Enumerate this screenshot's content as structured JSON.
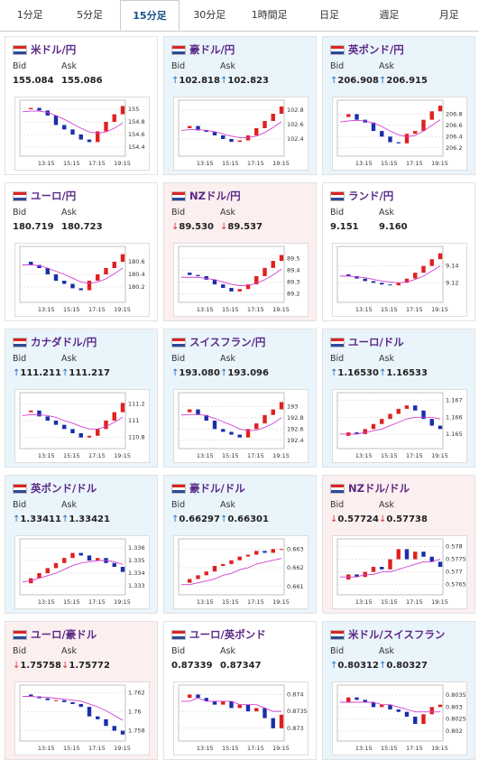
{
  "tabs": [
    "1分足",
    "5分足",
    "15分足",
    "30分足",
    "1時間足",
    "日足",
    "週足",
    "月足"
  ],
  "active_tab": 2,
  "bid_label": "Bid",
  "ask_label": "Ask",
  "chart_xticks": [
    "13:15",
    "15:15",
    "17:15",
    "19:15"
  ],
  "cards": [
    {
      "name": "米ドル/円",
      "trend": null,
      "arrow": null,
      "bid": "155.084",
      "ask": "155.086",
      "chart": {
        "ylim": [
          154.3,
          155.1
        ],
        "yticks": [
          154.4,
          154.6,
          154.8,
          155
        ],
        "close": [
          155.0,
          155.02,
          154.98,
          154.9,
          154.75,
          154.68,
          154.6,
          154.52,
          154.48,
          154.65,
          154.8,
          154.92,
          155.05
        ],
        "ma": [
          154.96,
          154.97,
          154.97,
          154.95,
          154.9,
          154.84,
          154.77,
          154.7,
          154.64,
          154.62,
          154.64,
          154.7,
          154.78
        ]
      }
    },
    {
      "name": "豪ドル/円",
      "trend": "up",
      "arrow": "↑",
      "bid": "102.818",
      "ask": "102.823",
      "chart": {
        "ylim": [
          102.2,
          102.9
        ],
        "yticks": [
          102.4,
          102.6,
          102.8
        ],
        "close": [
          102.55,
          102.58,
          102.52,
          102.5,
          102.45,
          102.4,
          102.36,
          102.38,
          102.45,
          102.55,
          102.65,
          102.75,
          102.85
        ],
        "ma": [
          102.52,
          102.53,
          102.53,
          102.52,
          102.5,
          102.47,
          102.44,
          102.42,
          102.42,
          102.44,
          102.49,
          102.56,
          102.64
        ]
      }
    },
    {
      "name": "英ポンド/円",
      "trend": "up",
      "arrow": "↑",
      "bid": "206.908",
      "ask": "206.915",
      "chart": {
        "ylim": [
          206.1,
          207.0
        ],
        "yticks": [
          206.2,
          206.4,
          206.6,
          206.8
        ],
        "close": [
          206.75,
          206.8,
          206.7,
          206.65,
          206.5,
          206.4,
          206.3,
          206.28,
          206.45,
          206.5,
          206.7,
          206.85,
          206.95
        ],
        "ma": [
          206.66,
          206.68,
          206.69,
          206.68,
          206.64,
          206.58,
          206.5,
          206.43,
          206.4,
          206.42,
          206.5,
          206.6,
          206.7
        ]
      }
    },
    {
      "name": "ユーロ/円",
      "trend": null,
      "arrow": null,
      "bid": "180.719",
      "ask": "180.723",
      "chart": {
        "ylim": [
          180.0,
          180.8
        ],
        "yticks": [
          180.2,
          180.4,
          180.6
        ],
        "close": [
          180.6,
          180.55,
          180.5,
          180.4,
          180.3,
          180.25,
          180.18,
          180.15,
          180.3,
          180.4,
          180.5,
          180.6,
          180.72
        ],
        "ma": [
          180.55,
          180.55,
          180.54,
          180.5,
          180.45,
          180.4,
          180.34,
          180.28,
          180.26,
          180.28,
          180.33,
          180.41,
          180.5
        ]
      }
    },
    {
      "name": "NZドル/円",
      "trend": "down",
      "arrow": "↓",
      "bid": "89.530",
      "ask": "89.537",
      "chart": {
        "ylim": [
          89.15,
          89.58
        ],
        "yticks": [
          89.2,
          89.3,
          89.4,
          89.5
        ],
        "close": [
          89.38,
          89.36,
          89.35,
          89.32,
          89.28,
          89.25,
          89.22,
          89.24,
          89.28,
          89.35,
          89.42,
          89.48,
          89.53
        ],
        "ma": [
          89.34,
          89.34,
          89.34,
          89.33,
          89.32,
          89.3,
          89.28,
          89.27,
          89.27,
          89.29,
          89.32,
          89.36,
          89.41
        ]
      }
    },
    {
      "name": "ランド/円",
      "trend": null,
      "arrow": null,
      "bid": "9.151",
      "ask": "9.160",
      "chart": {
        "ylim": [
          9.1,
          9.16
        ],
        "yticks": [
          9.12,
          9.14
        ],
        "close": [
          9.13,
          9.128,
          9.125,
          9.122,
          9.12,
          9.118,
          9.117,
          9.12,
          9.125,
          9.132,
          9.14,
          9.148,
          9.155
        ],
        "ma": [
          9.128,
          9.128,
          9.127,
          9.126,
          9.124,
          9.122,
          9.121,
          9.12,
          9.121,
          9.124,
          9.128,
          9.134,
          9.14
        ]
      }
    },
    {
      "name": "カナダドル/円",
      "trend": "up",
      "arrow": "↑",
      "bid": "111.211",
      "ask": "111.217",
      "chart": {
        "ylim": [
          110.7,
          111.3
        ],
        "yticks": [
          110.8,
          111,
          111.2
        ],
        "close": [
          111.1,
          111.12,
          111.05,
          111.0,
          110.95,
          110.9,
          110.85,
          110.8,
          110.82,
          110.9,
          111.0,
          111.1,
          111.21
        ],
        "ma": [
          111.06,
          111.07,
          111.07,
          111.06,
          111.04,
          111.0,
          110.97,
          110.93,
          110.9,
          110.9,
          110.93,
          110.98,
          111.04
        ]
      }
    },
    {
      "name": "スイスフラン/円",
      "trend": "up",
      "arrow": "↑",
      "bid": "193.080",
      "ask": "193.096",
      "chart": {
        "ylim": [
          192.3,
          193.2
        ],
        "yticks": [
          192.4,
          192.6,
          192.8,
          193
        ],
        "close": [
          192.9,
          192.95,
          192.85,
          192.75,
          192.6,
          192.55,
          192.5,
          192.45,
          192.6,
          192.7,
          192.85,
          192.95,
          193.08
        ],
        "ma": [
          192.85,
          192.86,
          192.86,
          192.84,
          192.79,
          192.73,
          192.67,
          192.6,
          192.57,
          192.58,
          192.63,
          192.7,
          192.8
        ]
      }
    },
    {
      "name": "ユーロ/ドル",
      "trend": "up",
      "arrow": "↑",
      "bid": "1.16530",
      "ask": "1.16533",
      "chart": {
        "ylim": [
          1.1643,
          1.1673
        ],
        "yticks": [
          1.165,
          1.166,
          1.167
        ],
        "close": [
          1.1649,
          1.1651,
          1.165,
          1.1653,
          1.1656,
          1.1659,
          1.1662,
          1.1665,
          1.1667,
          1.1664,
          1.1659,
          1.1655,
          1.1653
        ],
        "ma": [
          1.165,
          1.165,
          1.165,
          1.1651,
          1.1652,
          1.1653,
          1.1655,
          1.1657,
          1.1659,
          1.166,
          1.166,
          1.166,
          1.1659
        ]
      }
    },
    {
      "name": "英ポンド/ドル",
      "trend": "up",
      "arrow": "↑",
      "bid": "1.33411",
      "ask": "1.33421",
      "chart": {
        "ylim": [
          1.3325,
          1.3365
        ],
        "yticks": [
          1.333,
          1.334,
          1.335,
          1.336
        ],
        "close": [
          1.3332,
          1.3336,
          1.334,
          1.3344,
          1.3348,
          1.3352,
          1.3356,
          1.3354,
          1.335,
          1.3352,
          1.3348,
          1.3345,
          1.3341
        ],
        "ma": [
          1.3333,
          1.3334,
          1.3336,
          1.3338,
          1.334,
          1.3343,
          1.3346,
          1.3348,
          1.3349,
          1.335,
          1.335,
          1.3349,
          1.3347
        ]
      }
    },
    {
      "name": "豪ドル/ドル",
      "trend": "up",
      "arrow": "↑",
      "bid": "0.66297",
      "ask": "0.66301",
      "chart": {
        "ylim": [
          0.6607,
          0.6634
        ],
        "yticks": [
          0.661,
          0.662,
          0.663
        ],
        "close": [
          0.6612,
          0.6614,
          0.6616,
          0.6618,
          0.6621,
          0.6622,
          0.6624,
          0.6626,
          0.6627,
          0.6629,
          0.6628,
          0.663,
          0.663
        ],
        "ma": [
          0.6611,
          0.6611,
          0.6612,
          0.6613,
          0.6614,
          0.6616,
          0.6617,
          0.6619,
          0.662,
          0.6622,
          0.6623,
          0.6624,
          0.6625
        ]
      }
    },
    {
      "name": "NZドル/ドル",
      "trend": "down",
      "arrow": "↓",
      "bid": "0.57724",
      "ask": "0.57738",
      "chart": {
        "ylim": [
          0.5762,
          0.5782
        ],
        "yticks": [
          0.5765,
          0.577,
          0.5775,
          0.578
        ],
        "close": [
          0.5767,
          0.5769,
          0.5768,
          0.577,
          0.5772,
          0.5771,
          0.5775,
          0.5779,
          0.5775,
          0.5778,
          0.5776,
          0.5774,
          0.5772
        ],
        "ma": [
          0.5768,
          0.5768,
          0.5768,
          0.5769,
          0.5769,
          0.577,
          0.577,
          0.5771,
          0.5772,
          0.5773,
          0.5774,
          0.5774,
          0.5775
        ]
      }
    },
    {
      "name": "ユーロ/豪ドル",
      "trend": "down",
      "arrow": "↓",
      "bid": "1.75758",
      "ask": "1.75772",
      "chart": {
        "ylim": [
          1.7572,
          1.7625
        ],
        "yticks": [
          1.758,
          1.76,
          1.762
        ],
        "close": [
          1.7618,
          1.7616,
          1.7614,
          1.7612,
          1.7612,
          1.761,
          1.7608,
          1.7605,
          1.7595,
          1.7592,
          1.7585,
          1.758,
          1.7576
        ],
        "ma": [
          1.7616,
          1.7616,
          1.7615,
          1.7615,
          1.7614,
          1.7613,
          1.7612,
          1.7611,
          1.7608,
          1.7605,
          1.7601,
          1.7596,
          1.7591
        ]
      }
    },
    {
      "name": "ユーロ/英ポンド",
      "trend": null,
      "arrow": null,
      "bid": "0.87339",
      "ask": "0.87347",
      "chart": {
        "ylim": [
          0.8727,
          0.8742
        ],
        "yticks": [
          0.873,
          0.8735,
          0.874
        ],
        "close": [
          0.8739,
          0.874,
          0.8739,
          0.8738,
          0.8737,
          0.8738,
          0.8736,
          0.8737,
          0.8735,
          0.8736,
          0.8733,
          0.873,
          0.8734
        ],
        "ma": [
          0.8738,
          0.8738,
          0.8739,
          0.8738,
          0.8738,
          0.8738,
          0.8738,
          0.8737,
          0.8737,
          0.8737,
          0.8736,
          0.8735,
          0.8735
        ]
      }
    },
    {
      "name": "米ドル/スイスフラン",
      "trend": "up",
      "arrow": "↑",
      "bid": "0.80312",
      "ask": "0.80327",
      "chart": {
        "ylim": [
          0.8017,
          0.8038
        ],
        "yticks": [
          0.802,
          0.8025,
          0.803,
          0.8035
        ],
        "close": [
          0.8032,
          0.8034,
          0.8033,
          0.8032,
          0.803,
          0.8031,
          0.8029,
          0.8028,
          0.8026,
          0.8023,
          0.8027,
          0.803,
          0.8031
        ],
        "ma": [
          0.8032,
          0.8032,
          0.8032,
          0.8032,
          0.8032,
          0.8031,
          0.8031,
          0.803,
          0.8029,
          0.8028,
          0.8028,
          0.8028,
          0.8028
        ]
      }
    }
  ]
}
